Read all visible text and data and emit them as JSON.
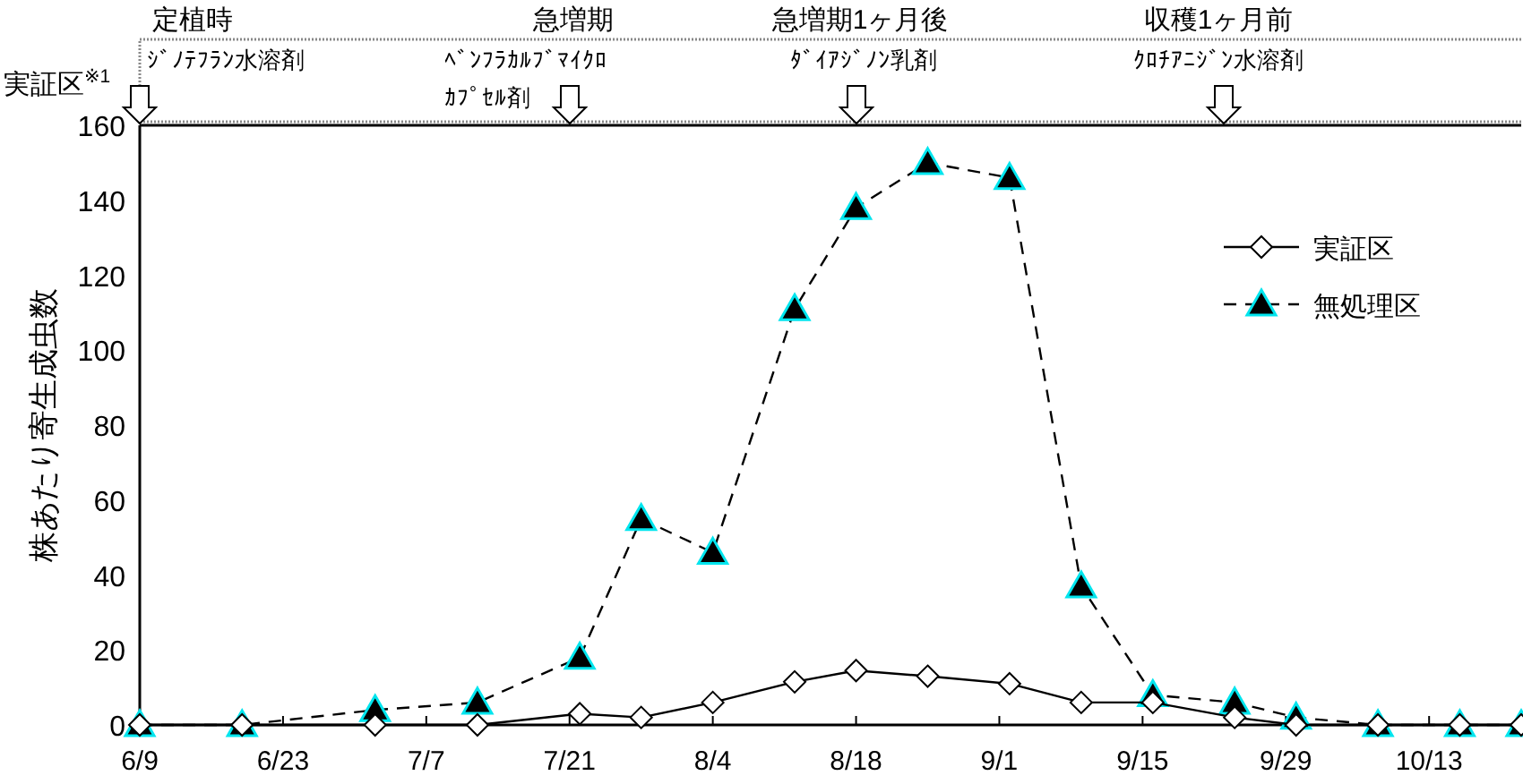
{
  "chart_data": {
    "type": "line",
    "ylabel": "株あたり寄生成虫数",
    "x": [
      "--06-09",
      "--06-19",
      "--07-02",
      "--07-12",
      "--07-22",
      "--07-28",
      "--08-04",
      "--08-12",
      "--08-18",
      "--08-25",
      "--09-02",
      "--09-09",
      "--09-16",
      "--09-24",
      "--09-30",
      "--10-08",
      "--10-16",
      "--10-22"
    ],
    "series": [
      {
        "name": "実証区",
        "color": "#000000",
        "marker": "diamond",
        "line_style": "solid",
        "values": [
          0,
          0,
          0,
          0,
          3,
          2,
          6,
          11.5,
          14.5,
          13,
          11,
          6,
          6,
          2,
          0,
          0,
          0,
          0
        ]
      },
      {
        "name": "無処理区",
        "color": "#000000",
        "marker": "triangle",
        "line_style": "dashed",
        "values": [
          0,
          0,
          4,
          6,
          18,
          55,
          46,
          111,
          138,
          150,
          146,
          37,
          8,
          6,
          2,
          0,
          0,
          0
        ]
      }
    ],
    "xlim": [
      "--06-09",
      "--10-22"
    ],
    "xticks": [
      {
        "value": "--06-09",
        "label": "6/9"
      },
      {
        "value": "--06-23",
        "label": "6/23"
      },
      {
        "value": "--07-07",
        "label": "7/7"
      },
      {
        "value": "--07-21",
        "label": "7/21"
      },
      {
        "value": "--08-04",
        "label": "8/4"
      },
      {
        "value": "--08-18",
        "label": "8/18"
      },
      {
        "value": "--09-01",
        "label": "9/1"
      },
      {
        "value": "--09-15",
        "label": "9/15"
      },
      {
        "value": "--09-29",
        "label": "9/29"
      },
      {
        "value": "--10-13",
        "label": "10/13"
      }
    ],
    "ylim": [
      0,
      160
    ],
    "yticks": [
      0,
      20,
      40,
      60,
      80,
      100,
      120,
      140,
      160
    ],
    "grid": false,
    "legend": "top right",
    "annotations": [
      "実証区$^{※1}$",
      "定植時",
      "ｼﾞﾉﾃﾌﾗﾝ水溶剤",
      "急増期",
      "ﾍﾞﾝﾌﾗｶﾙﾌﾞﾏｲｸﾛｶﾌﾟｾﾙ剤",
      "急増期1ヶ月後",
      "ﾀﾞｲｱｼﾞﾉﾝ乳剤",
      "収穫1ヶ月前",
      "ｸﾛﾁｱﾆｼﾞﾝ水溶剤"
    ]
  }
}
